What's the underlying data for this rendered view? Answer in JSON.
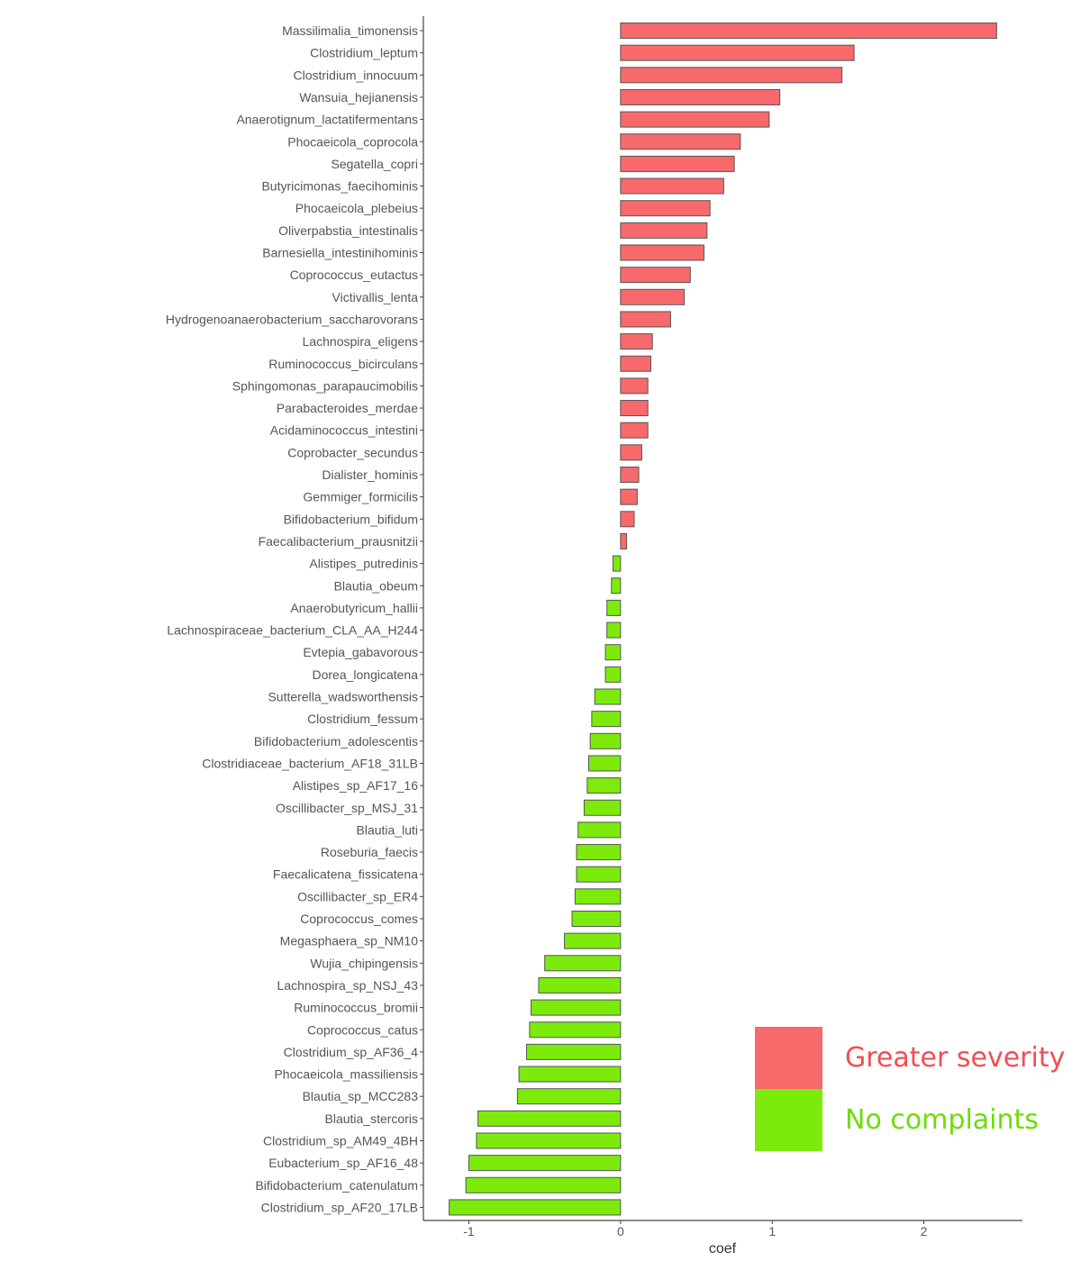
{
  "chart_data": {
    "type": "bar",
    "orientation": "horizontal",
    "xlabel": "coef",
    "ylabel": "",
    "xlim": [
      -1.3,
      2.65
    ],
    "xticks": [
      -1,
      0,
      1,
      2
    ],
    "grid": false,
    "colors": {
      "positive": "#F8696B",
      "negative": "#7CEB0C",
      "bar_outline": "#555555"
    },
    "categories": [
      "Massilimalia_timonensis",
      "Clostridium_leptum",
      "Clostridium_innocuum",
      "Wansuia_hejianensis",
      "Anaerotignum_lactatifermentans",
      "Phocaeicola_coprocola",
      "Segatella_copri",
      "Butyricimonas_faecihominis",
      "Phocaeicola_plebeius",
      "Oliverpabstia_intestinalis",
      "Barnesiella_intestinihominis",
      "Coprococcus_eutactus",
      "Victivallis_lenta",
      "Hydrogenoanaerobacterium_saccharovorans",
      "Lachnospira_eligens",
      "Ruminococcus_bicirculans",
      "Sphingomonas_parapaucimobilis",
      "Parabacteroides_merdae",
      "Acidaminococcus_intestini",
      "Coprobacter_secundus",
      "Dialister_hominis",
      "Gemmiger_formicilis",
      "Bifidobacterium_bifidum",
      "Faecalibacterium_prausnitzii",
      "Alistipes_putredinis",
      "Blautia_obeum",
      "Anaerobutyricum_hallii",
      "Lachnospiraceae_bacterium_CLA_AA_H244",
      "Evtepia_gabavorous",
      "Dorea_longicatena",
      "Sutterella_wadsworthensis",
      "Clostridium_fessum",
      "Bifidobacterium_adolescentis",
      "Clostridiaceae_bacterium_AF18_31LB",
      "Alistipes_sp_AF17_16",
      "Oscillibacter_sp_MSJ_31",
      "Blautia_luti",
      "Roseburia_faecis",
      "Faecalicatena_fissicatena",
      "Oscillibacter_sp_ER4",
      "Coprococcus_comes",
      "Megasphaera_sp_NM10",
      "Wujia_chipingensis",
      "Lachnospira_sp_NSJ_43",
      "Ruminococcus_bromii",
      "Coprococcus_catus",
      "Clostridium_sp_AF36_4",
      "Phocaeicola_massiliensis",
      "Blautia_sp_MCC283",
      "Blautia_stercoris",
      "Clostridium_sp_AM49_4BH",
      "Eubacterium_sp_AF16_48",
      "Bifidobacterium_catenulatum",
      "Clostridium_sp_AF20_17LB"
    ],
    "values": [
      2.48,
      1.54,
      1.46,
      1.05,
      0.98,
      0.79,
      0.75,
      0.68,
      0.59,
      0.57,
      0.55,
      0.46,
      0.42,
      0.33,
      0.21,
      0.2,
      0.18,
      0.18,
      0.18,
      0.14,
      0.12,
      0.11,
      0.09,
      0.04,
      -0.05,
      -0.06,
      -0.09,
      -0.09,
      -0.1,
      -0.1,
      -0.17,
      -0.19,
      -0.2,
      -0.21,
      -0.22,
      -0.24,
      -0.28,
      -0.29,
      -0.29,
      -0.3,
      -0.32,
      -0.37,
      -0.5,
      -0.54,
      -0.59,
      -0.6,
      -0.62,
      -0.67,
      -0.68,
      -0.94,
      -0.95,
      -1.0,
      -1.02,
      -1.13
    ]
  },
  "legend": {
    "items": [
      {
        "label": "Greater severity",
        "color": "#F8696B",
        "text_color": "#F04E55"
      },
      {
        "label": "No complaints",
        "color": "#7CEB0C",
        "text_color": "#6EDC0A"
      }
    ]
  }
}
